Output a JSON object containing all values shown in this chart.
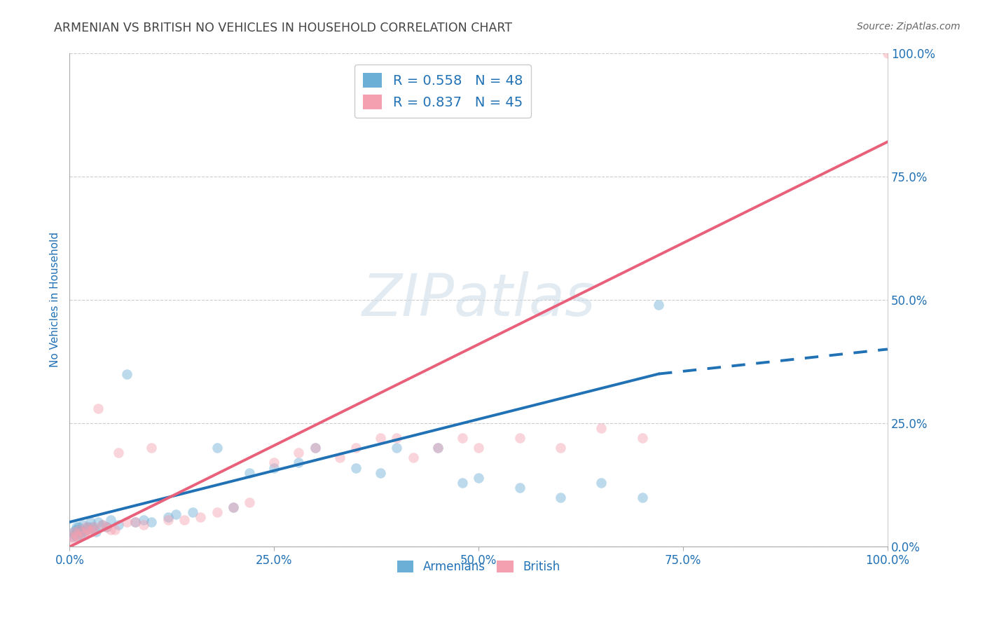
{
  "title": "ARMENIAN VS BRITISH NO VEHICLES IN HOUSEHOLD CORRELATION CHART",
  "source": "Source: ZipAtlas.com",
  "ylabel": "No Vehicles in Household",
  "watermark": "ZIPatlas",
  "armenian_R": 0.558,
  "armenian_N": 48,
  "british_R": 0.837,
  "british_N": 45,
  "armenian_color": "#6baed6",
  "british_color": "#f4a0b0",
  "british_line_color": "#e8607a",
  "blue_line_color": "#2171b5",
  "title_color": "#444444",
  "source_color": "#666666",
  "legend_text_color": "#2171b5",
  "axis_tick_color": "#2171b5",
  "armenian_x": [
    0.3,
    0.5,
    0.6,
    0.7,
    0.8,
    0.9,
    1.0,
    1.1,
    1.2,
    1.3,
    1.5,
    1.6,
    1.8,
    2.0,
    2.2,
    2.5,
    2.8,
    3.0,
    3.2,
    3.5,
    4.0,
    4.5,
    5.0,
    6.0,
    7.0,
    8.0,
    9.0,
    10.0,
    12.0,
    13.0,
    15.0,
    18.0,
    20.0,
    22.0,
    25.0,
    28.0,
    30.0,
    35.0,
    38.0,
    40.0,
    45.0,
    48.0,
    50.0,
    55.0,
    60.0,
    65.0,
    70.0,
    72.0
  ],
  "armenian_y": [
    2.0,
    3.0,
    2.5,
    3.5,
    4.0,
    2.0,
    3.0,
    4.0,
    3.5,
    2.5,
    3.0,
    4.5,
    3.0,
    3.5,
    4.0,
    5.0,
    4.0,
    3.5,
    3.0,
    5.0,
    4.5,
    4.0,
    5.5,
    4.5,
    35.0,
    5.0,
    5.5,
    5.0,
    6.0,
    6.5,
    7.0,
    20.0,
    8.0,
    15.0,
    16.0,
    17.0,
    20.0,
    16.0,
    15.0,
    20.0,
    20.0,
    13.0,
    14.0,
    12.0,
    10.0,
    13.0,
    10.0,
    49.0
  ],
  "british_x": [
    0.3,
    0.5,
    0.6,
    0.8,
    1.0,
    1.2,
    1.5,
    1.8,
    2.0,
    2.2,
    2.5,
    2.8,
    3.0,
    3.5,
    4.0,
    4.5,
    5.0,
    5.5,
    6.0,
    7.0,
    8.0,
    9.0,
    10.0,
    12.0,
    14.0,
    16.0,
    18.0,
    20.0,
    22.0,
    25.0,
    28.0,
    30.0,
    33.0,
    35.0,
    38.0,
    40.0,
    42.0,
    45.0,
    48.0,
    50.0,
    55.0,
    60.0,
    65.0,
    70.0,
    100.0
  ],
  "british_y": [
    2.0,
    1.5,
    3.0,
    2.5,
    2.0,
    3.5,
    3.0,
    2.5,
    4.0,
    3.5,
    3.0,
    3.5,
    4.0,
    28.0,
    4.5,
    4.0,
    3.5,
    3.5,
    19.0,
    5.0,
    5.0,
    4.5,
    20.0,
    5.5,
    5.5,
    6.0,
    7.0,
    8.0,
    9.0,
    17.0,
    19.0,
    20.0,
    18.0,
    20.0,
    22.0,
    22.0,
    18.0,
    20.0,
    22.0,
    20.0,
    22.0,
    20.0,
    24.0,
    22.0,
    100.0
  ],
  "armenian_line_x0": 0,
  "armenian_line_y0": 5.0,
  "armenian_line_x1": 72,
  "armenian_line_y1": 35.0,
  "armenian_dash_x0": 72,
  "armenian_dash_y0": 35.0,
  "armenian_dash_x1": 100,
  "armenian_dash_y1": 40.0,
  "british_line_x0": 0,
  "british_line_y0": 0.0,
  "british_line_x1": 100,
  "british_line_y1": 82.0,
  "xlim": [
    0,
    100
  ],
  "ylim": [
    0,
    100
  ],
  "xticks": [
    0,
    25,
    50,
    75,
    100
  ],
  "yticks": [
    0,
    25,
    50,
    75,
    100
  ],
  "xticklabels": [
    "0.0%",
    "25.0%",
    "50.0%",
    "75.0%",
    "100.0%"
  ],
  "yticklabels": [
    "0.0%",
    "25.0%",
    "50.0%",
    "75.0%",
    "100.0%"
  ],
  "grid_color": "#cccccc",
  "background_color": "#ffffff",
  "marker_size": 110,
  "marker_alpha": 0.45,
  "line_width": 2.8
}
